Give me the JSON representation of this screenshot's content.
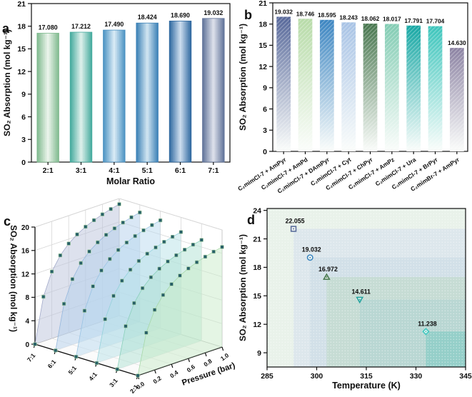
{
  "figure": {
    "panel_letters": [
      "a",
      "b",
      "c",
      "d"
    ]
  },
  "chart_data": [
    {
      "panel": "a",
      "type": "bar",
      "xlabel": "Molar Ratio",
      "ylabel": "SO₂ Absorption (mol kg⁻¹)",
      "ylim": [
        0,
        21
      ],
      "yticks": [
        0,
        3,
        6,
        9,
        12,
        15,
        18,
        21
      ],
      "grid": false,
      "categories": [
        "2:1",
        "3:1",
        "4:1",
        "5:1",
        "6:1",
        "7:1"
      ],
      "values": [
        17.08,
        17.212,
        17.49,
        18.424,
        18.69,
        19.032
      ],
      "value_labels": [
        "17.080",
        "17.212",
        "17.490",
        "18.424",
        "18.690",
        "19.032"
      ],
      "bar_edge_colors": [
        "#7fba8e",
        "#43aa9d",
        "#4a92c3",
        "#3a80b6",
        "#2e68a0",
        "#5f7299"
      ],
      "bar_center_colors": [
        "#eef6ee",
        "#e0f2ed",
        "#dcedf7",
        "#d3e7f3",
        "#cfdff0",
        "#e0e3ed"
      ]
    },
    {
      "panel": "b",
      "type": "bar",
      "xlabel": "",
      "ylabel": "SO₂ Absorption (mol kg⁻¹)",
      "ylim": [
        0,
        21
      ],
      "yticks": [
        0,
        3,
        6,
        9,
        12,
        15,
        18,
        21
      ],
      "grid": false,
      "categories": [
        "C₂mimCl-7 + AmPyr",
        "C₂mimCl-7 + AmPd",
        "C₂mimCl-7 + DAmPyr",
        "C₂mimCl-7 + Cyt",
        "C₂mimCl-7 + ChPyr",
        "C₂mimCl-7 + AmPz",
        "C₂mimCl-7 + Ura",
        "C₂mimCl-7 + BrPyr",
        "C₂mimBr-7 + AmPyr"
      ],
      "values": [
        19.032,
        18.746,
        18.595,
        18.243,
        18.062,
        18.017,
        17.791,
        17.704,
        14.63
      ],
      "value_labels": [
        "19.032",
        "18.746",
        "18.595",
        "18.243",
        "18.062",
        "18.017",
        "17.791",
        "17.704",
        "14.630"
      ],
      "bar_top_colors": [
        "#57689a",
        "#b7dba8",
        "#3c85c1",
        "#a8c3e5",
        "#47764e",
        "#82ccb3",
        "#17a7a4",
        "#3dc5bc",
        "#8c83a3"
      ],
      "bar_bottom_color": "#fbfdfb"
    },
    {
      "panel": "c",
      "type": "scatter3d",
      "ratio_axis_categories": [
        "7:1",
        "6:1",
        "5:1",
        "4:1",
        "3:1",
        "2:1"
      ],
      "pressure_axis_label": "Pressure (bar)",
      "pressure_ticks": [
        "0.0",
        "0.2",
        "0.4",
        "0.6",
        "0.8",
        "1.0"
      ],
      "zlabel": "SO₂ Absorption (mol kg⁻¹)",
      "zlim": [
        0,
        20
      ],
      "zticks": [
        0,
        4,
        8,
        12,
        16,
        20
      ],
      "pressures": [
        0,
        0.1,
        0.2,
        0.3,
        0.4,
        0.5,
        0.6,
        0.7,
        0.8,
        0.9,
        1.0
      ],
      "series": [
        {
          "name": "7:1",
          "fill": "#bcc3dc",
          "stroke": "#9aa2c4",
          "values": [
            0,
            7.61,
            11.42,
            13.7,
            15.23,
            16.31,
            17.13,
            17.76,
            18.27,
            18.69,
            19.03
          ]
        },
        {
          "name": "6:1",
          "fill": "#b3cfeb",
          "stroke": "#8fb4dc",
          "values": [
            0,
            7.48,
            11.21,
            13.46,
            14.95,
            16.02,
            16.82,
            17.44,
            17.94,
            18.35,
            18.69
          ]
        },
        {
          "name": "5:1",
          "fill": "#bad9ef",
          "stroke": "#93c1e2",
          "values": [
            0,
            7.37,
            11.05,
            13.27,
            14.74,
            15.79,
            16.58,
            17.2,
            17.69,
            18.09,
            18.42
          ]
        },
        {
          "name": "4:1",
          "fill": "#b8e2e8",
          "stroke": "#8ed0d8",
          "values": [
            0,
            7.0,
            10.49,
            12.59,
            13.99,
            14.99,
            15.74,
            16.32,
            16.79,
            17.17,
            17.49
          ]
        },
        {
          "name": "3:1",
          "fill": "#b0e2d3",
          "stroke": "#84cdb6",
          "values": [
            0,
            6.88,
            10.33,
            12.39,
            13.77,
            14.75,
            15.49,
            16.06,
            16.52,
            16.9,
            17.21
          ]
        },
        {
          "name": "2:1",
          "fill": "#c9ecc9",
          "stroke": "#a3d6a3",
          "values": [
            0,
            6.83,
            10.25,
            12.3,
            13.66,
            14.64,
            15.37,
            15.94,
            16.4,
            16.77,
            17.08
          ]
        }
      ],
      "point_color": "#275f68"
    },
    {
      "panel": "d",
      "type": "scatter",
      "xlabel": "Temperature (K)",
      "ylabel": "SO₂ Absorption (mol kg⁻¹)",
      "xlim": [
        285,
        345
      ],
      "ylim": [
        7.5,
        24.2
      ],
      "xticks": [
        285,
        300,
        315,
        330,
        345
      ],
      "yticks": [
        9,
        12,
        15,
        18,
        21,
        24
      ],
      "x": [
        293,
        298,
        303,
        313,
        333
      ],
      "y": [
        22.055,
        19.032,
        16.972,
        14.611,
        11.238
      ],
      "value_labels": [
        "22.055",
        "19.032",
        "16.972",
        "14.611",
        "11.238"
      ],
      "markers": [
        "square",
        "circle",
        "triangle-up",
        "triangle-down",
        "diamond"
      ],
      "marker_colors": [
        "#5a6d9a",
        "#3e87c0",
        "#4a7a52",
        "#23a39e",
        "#3fc8c0"
      ],
      "background": "#e9f2ea",
      "band_colors": [
        "#dde7ec",
        "#d2e0e8",
        "#c6dcd4",
        "#b9d7d3",
        "#95cfc9"
      ]
    }
  ]
}
